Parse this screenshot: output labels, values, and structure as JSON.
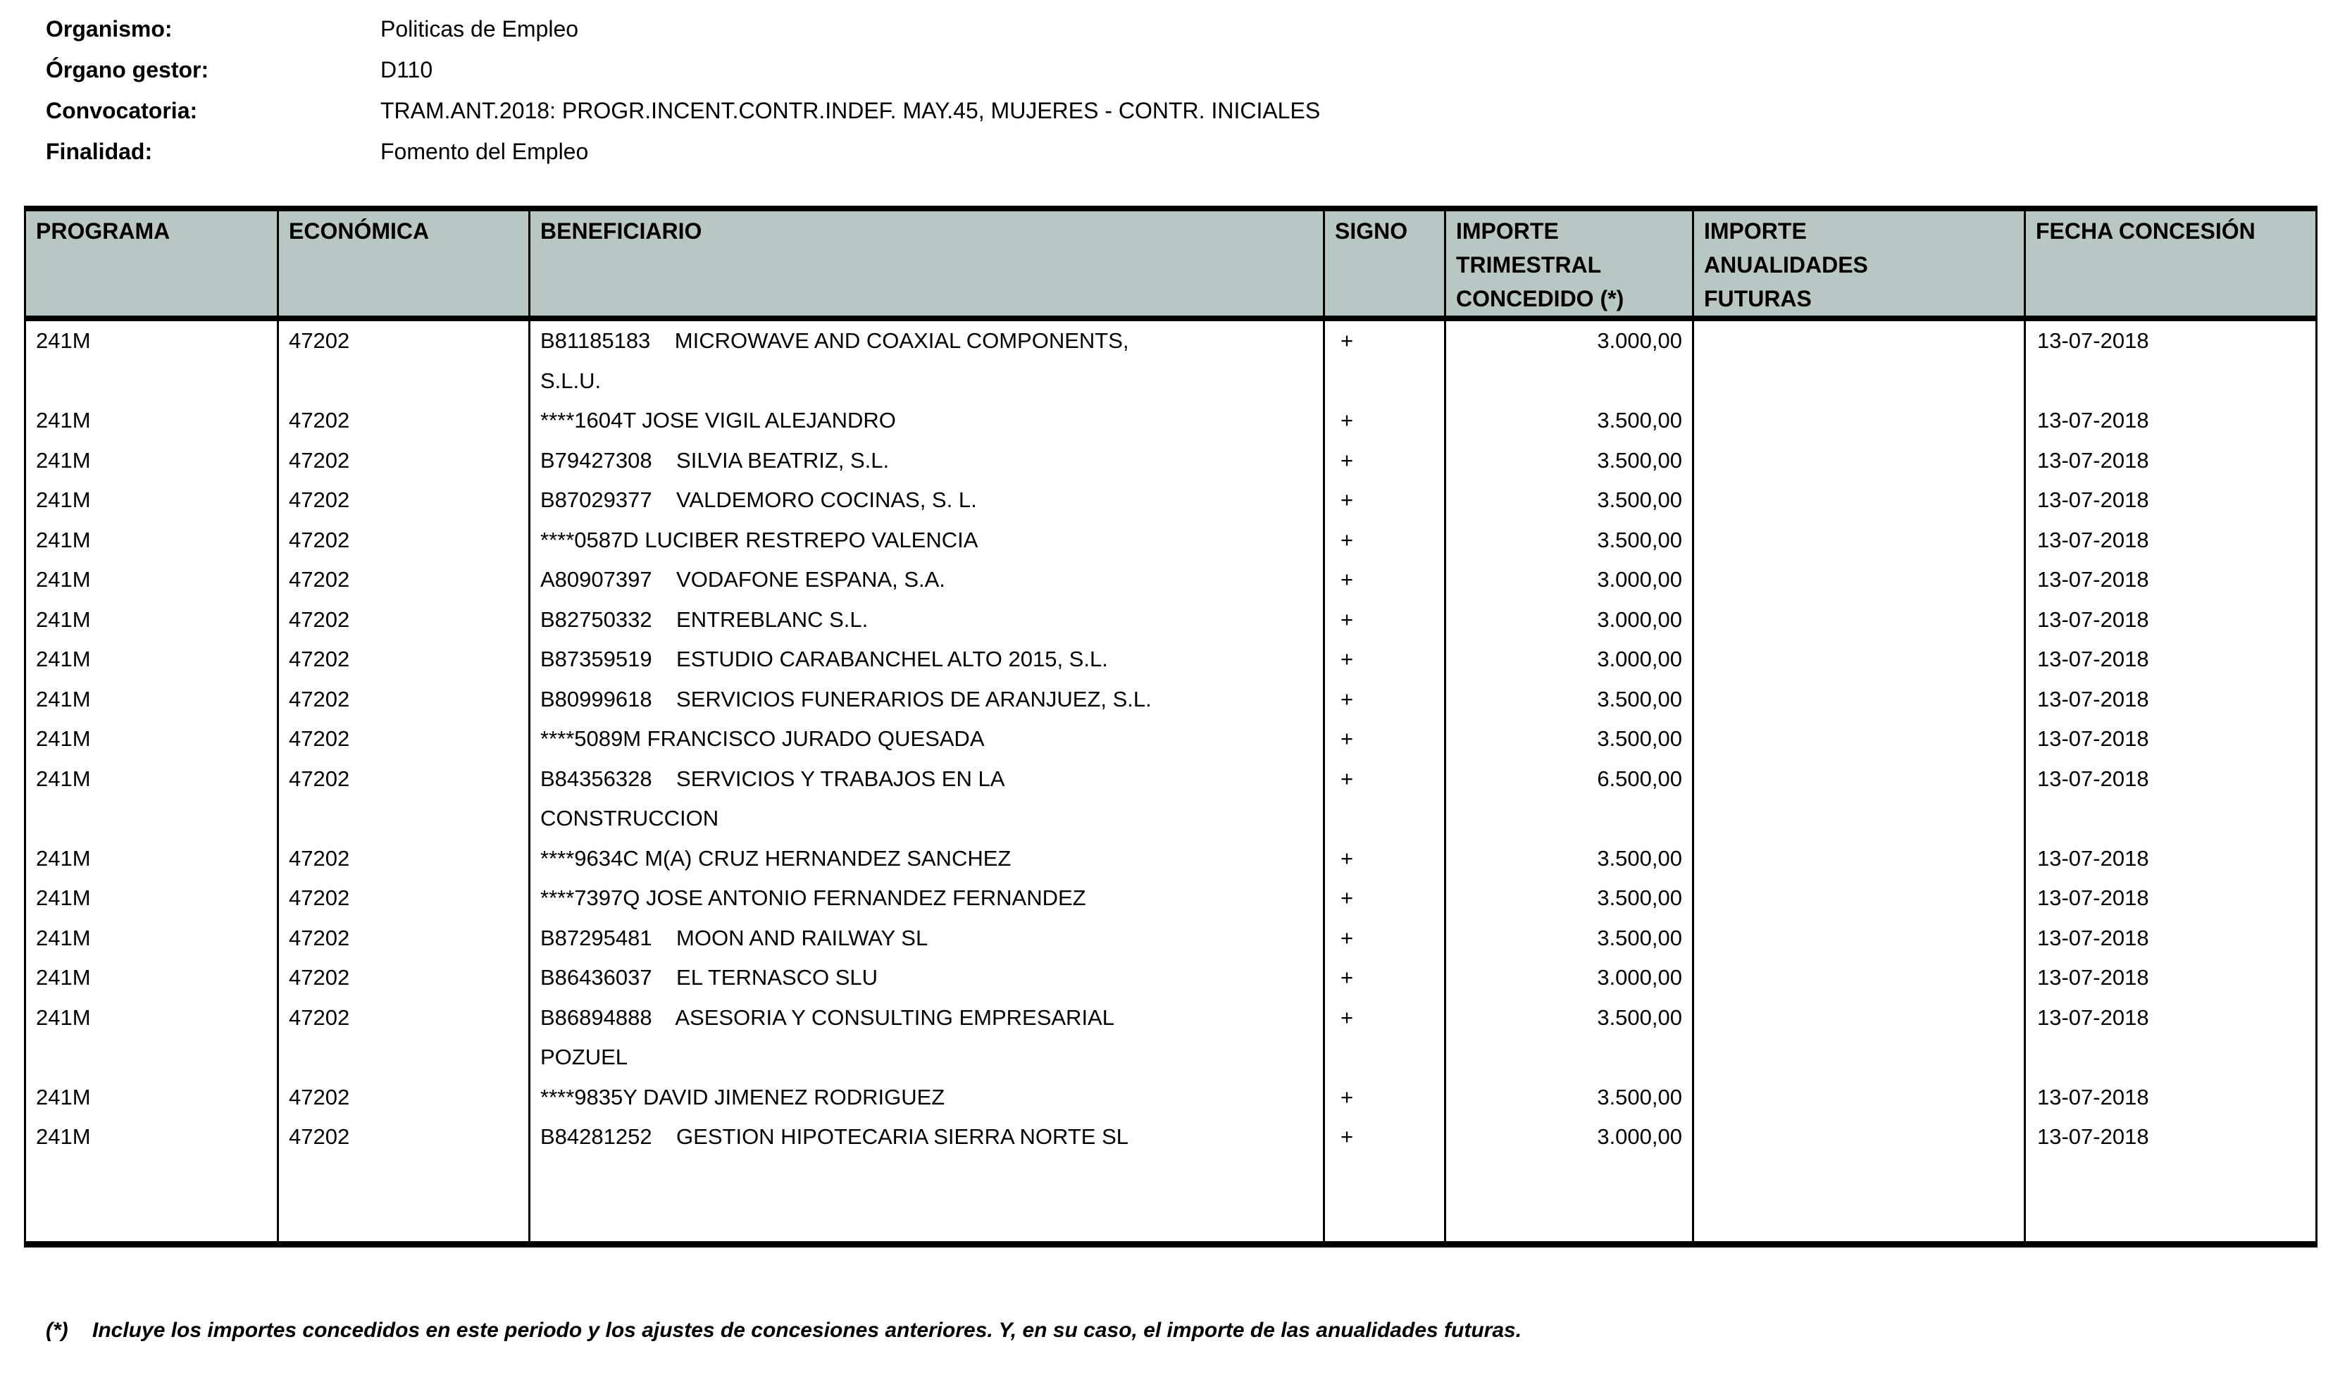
{
  "header_info": {
    "rows": [
      {
        "label": "Organismo:",
        "value": "Politicas de Empleo"
      },
      {
        "label": "Órgano gestor:",
        "value": "D110"
      },
      {
        "label": "Convocatoria:",
        "value": "TRAM.ANT.2018: PROGR.INCENT.CONTR.INDEF. MAY.45, MUJERES - CONTR. INICIALES"
      },
      {
        "label": "Finalidad:",
        "value": "Fomento del Empleo"
      }
    ]
  },
  "table": {
    "header_bg": "#b8c7c3",
    "columns": [
      "PROGRAMA",
      "ECONÓMICA",
      "BENEFICIARIO",
      "SIGNO",
      "IMPORTE\nTRIMESTRAL\nCONCEDIDO (*)",
      "IMPORTE\nANUALIDADES\nFUTURAS",
      "FECHA CONCESIÓN"
    ],
    "rows": [
      {
        "programa": "241M",
        "economica": "47202",
        "beneficiario": "B81185183    MICROWAVE AND COAXIAL COMPONENTS,\nS.L.U.",
        "signo": "+",
        "importe_trimestral": "3.000,00",
        "importe_anualidades": "",
        "fecha_concesion": "13-07-2018"
      },
      {
        "programa": "241M",
        "economica": "47202",
        "beneficiario": "****1604T JOSE VIGIL ALEJANDRO",
        "signo": "+",
        "importe_trimestral": "3.500,00",
        "importe_anualidades": "",
        "fecha_concesion": "13-07-2018"
      },
      {
        "programa": "241M",
        "economica": "47202",
        "beneficiario": "B79427308    SILVIA BEATRIZ, S.L.",
        "signo": "+",
        "importe_trimestral": "3.500,00",
        "importe_anualidades": "",
        "fecha_concesion": "13-07-2018"
      },
      {
        "programa": "241M",
        "economica": "47202",
        "beneficiario": "B87029377    VALDEMORO COCINAS, S. L.",
        "signo": "+",
        "importe_trimestral": "3.500,00",
        "importe_anualidades": "",
        "fecha_concesion": "13-07-2018"
      },
      {
        "programa": "241M",
        "economica": "47202",
        "beneficiario": "****0587D LUCIBER RESTREPO VALENCIA",
        "signo": "+",
        "importe_trimestral": "3.500,00",
        "importe_anualidades": "",
        "fecha_concesion": "13-07-2018"
      },
      {
        "programa": "241M",
        "economica": "47202",
        "beneficiario": "A80907397    VODAFONE ESPANA, S.A.",
        "signo": "+",
        "importe_trimestral": "3.000,00",
        "importe_anualidades": "",
        "fecha_concesion": "13-07-2018"
      },
      {
        "programa": "241M",
        "economica": "47202",
        "beneficiario": "B82750332    ENTREBLANC S.L.",
        "signo": "+",
        "importe_trimestral": "3.000,00",
        "importe_anualidades": "",
        "fecha_concesion": "13-07-2018"
      },
      {
        "programa": "241M",
        "economica": "47202",
        "beneficiario": "B87359519    ESTUDIO CARABANCHEL ALTO 2015, S.L.",
        "signo": "+",
        "importe_trimestral": "3.000,00",
        "importe_anualidades": "",
        "fecha_concesion": "13-07-2018"
      },
      {
        "programa": "241M",
        "economica": "47202",
        "beneficiario": "B80999618    SERVICIOS FUNERARIOS DE ARANJUEZ, S.L.",
        "signo": "+",
        "importe_trimestral": "3.500,00",
        "importe_anualidades": "",
        "fecha_concesion": "13-07-2018"
      },
      {
        "programa": "241M",
        "economica": "47202",
        "beneficiario": "****5089M FRANCISCO JURADO QUESADA",
        "signo": "+",
        "importe_trimestral": "3.500,00",
        "importe_anualidades": "",
        "fecha_concesion": "13-07-2018"
      },
      {
        "programa": "241M",
        "economica": "47202",
        "beneficiario": "B84356328    SERVICIOS Y TRABAJOS EN LA\nCONSTRUCCION",
        "signo": "+",
        "importe_trimestral": "6.500,00",
        "importe_anualidades": "",
        "fecha_concesion": "13-07-2018"
      },
      {
        "programa": "241M",
        "economica": "47202",
        "beneficiario": "****9634C M(A) CRUZ HERNANDEZ SANCHEZ",
        "signo": "+",
        "importe_trimestral": "3.500,00",
        "importe_anualidades": "",
        "fecha_concesion": "13-07-2018"
      },
      {
        "programa": "241M",
        "economica": "47202",
        "beneficiario": "****7397Q JOSE ANTONIO FERNANDEZ FERNANDEZ",
        "signo": "+",
        "importe_trimestral": "3.500,00",
        "importe_anualidades": "",
        "fecha_concesion": "13-07-2018"
      },
      {
        "programa": "241M",
        "economica": "47202",
        "beneficiario": "B87295481    MOON AND RAILWAY SL",
        "signo": "+",
        "importe_trimestral": "3.500,00",
        "importe_anualidades": "",
        "fecha_concesion": "13-07-2018"
      },
      {
        "programa": "241M",
        "economica": "47202",
        "beneficiario": "B86436037    EL TERNASCO SLU",
        "signo": "+",
        "importe_trimestral": "3.000,00",
        "importe_anualidades": "",
        "fecha_concesion": "13-07-2018"
      },
      {
        "programa": "241M",
        "economica": "47202",
        "beneficiario": "B86894888    ASESORIA Y CONSULTING EMPRESARIAL\nPOZUEL",
        "signo": "+",
        "importe_trimestral": "3.500,00",
        "importe_anualidades": "",
        "fecha_concesion": "13-07-2018"
      },
      {
        "programa": "241M",
        "economica": "47202",
        "beneficiario": "****9835Y DAVID JIMENEZ RODRIGUEZ",
        "signo": "+",
        "importe_trimestral": "3.500,00",
        "importe_anualidades": "",
        "fecha_concesion": "13-07-2018"
      },
      {
        "programa": "241M",
        "economica": "47202",
        "beneficiario": "B84281252    GESTION HIPOTECARIA SIERRA NORTE SL",
        "signo": "+",
        "importe_trimestral": "3.000,00",
        "importe_anualidades": "",
        "fecha_concesion": "13-07-2018"
      }
    ]
  },
  "footnote": {
    "marker": "(*)",
    "text": "Incluye los importes concedidos en este periodo y los ajustes de concesiones anteriores. Y, en su caso, el importe de las anualidades futuras."
  }
}
